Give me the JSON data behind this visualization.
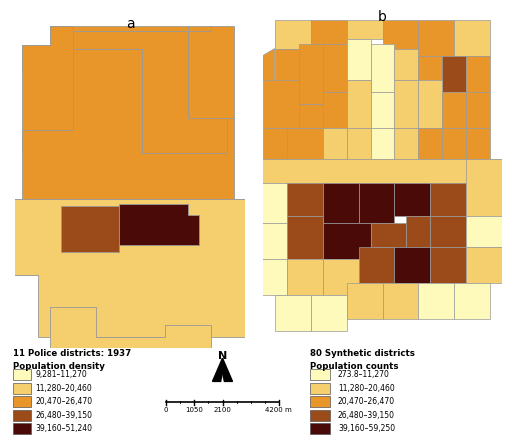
{
  "title_a": "a",
  "title_b": "b",
  "legend_a_title1": "11 Police districts: 1937",
  "legend_a_title2": "Population density",
  "legend_b_title1": "80 Synthetic districts",
  "legend_b_title2": "Population counts",
  "colors": {
    "c1": "#FEFABC",
    "c2": "#F5CE6E",
    "c3": "#E8962A",
    "c4": "#9B4B1A",
    "c5": "#4A0A08"
  },
  "legend_a_labels": [
    "9,281–11,270",
    "11,280–20,460",
    "20,470–26,470",
    "26,480–39,150",
    "39,160–51,240"
  ],
  "legend_b_labels": [
    "273.8–11,270",
    "11,280–20,460",
    "20,470–26,470",
    "26,480–39,150",
    "39,160–59,250"
  ],
  "background": "#ffffff",
  "map_edge_color": "#999999",
  "map_edge_width": 0.6
}
